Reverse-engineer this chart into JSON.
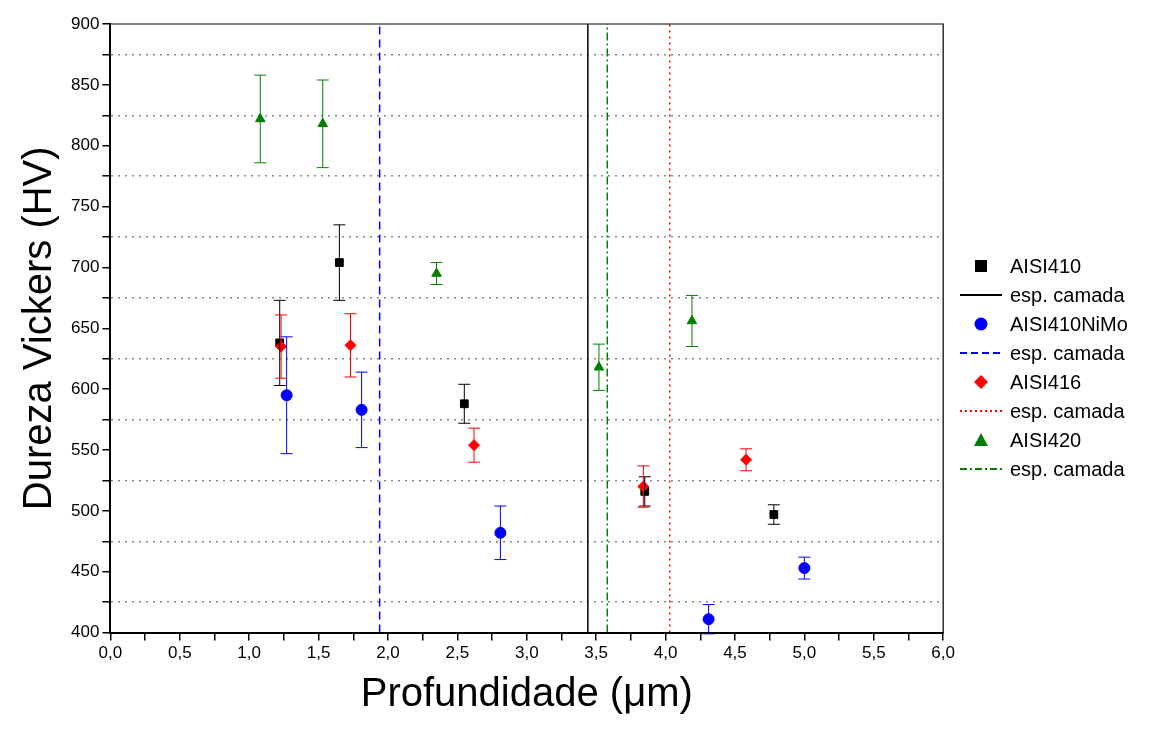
{
  "chart_data": {
    "type": "scatter",
    "xlabel": "Profundidade (μm)",
    "ylabel": "Dureza Vickers (HV)",
    "xlim": [
      0,
      6
    ],
    "ylim": [
      400,
      900
    ],
    "xticks": [
      {
        "value": 0,
        "label": "0,0"
      },
      {
        "value": 0.25,
        "label": null
      },
      {
        "value": 0.5,
        "label": "0,5"
      },
      {
        "value": 0.75,
        "label": null
      },
      {
        "value": 1,
        "label": "1,0"
      },
      {
        "value": 1.25,
        "label": null
      },
      {
        "value": 1.5,
        "label": "1,5"
      },
      {
        "value": 1.75,
        "label": null
      },
      {
        "value": 2,
        "label": "2,0"
      },
      {
        "value": 2.25,
        "label": null
      },
      {
        "value": 2.5,
        "label": "2,5"
      },
      {
        "value": 2.75,
        "label": null
      },
      {
        "value": 3,
        "label": "3,0"
      },
      {
        "value": 3.25,
        "label": null
      },
      {
        "value": 3.5,
        "label": "3,5"
      },
      {
        "value": 3.75,
        "label": null
      },
      {
        "value": 4,
        "label": "4,0"
      },
      {
        "value": 4.25,
        "label": null
      },
      {
        "value": 4.5,
        "label": "4,5"
      },
      {
        "value": 4.75,
        "label": null
      },
      {
        "value": 5,
        "label": "5,0"
      },
      {
        "value": 5.25,
        "label": null
      },
      {
        "value": 5.5,
        "label": "5,5"
      },
      {
        "value": 5.75,
        "label": null
      },
      {
        "value": 6,
        "label": "6,0"
      }
    ],
    "yticks": [
      400,
      {
        "value": 425,
        "label": null
      },
      450,
      {
        "value": 475,
        "label": null
      },
      500,
      {
        "value": 525,
        "label": null
      },
      550,
      {
        "value": 575,
        "label": null
      },
      600,
      {
        "value": 625,
        "label": null
      },
      650,
      {
        "value": 675,
        "label": null
      },
      700,
      {
        "value": 725,
        "label": null
      },
      750,
      {
        "value": 775,
        "label": null
      },
      800,
      {
        "value": 825,
        "label": null
      },
      850,
      {
        "value": 875,
        "label": null
      },
      900
    ],
    "grid": "y",
    "legend": "right",
    "series": [
      {
        "name": "AISI410",
        "color": "#000000",
        "marker": "square",
        "x": [
          1.22,
          1.65,
          2.55,
          3.85,
          4.78
        ],
        "values": [
          638,
          704,
          588,
          516,
          497
        ],
        "errors": [
          35,
          31,
          16,
          12,
          8
        ]
      },
      {
        "name": "esp. camada",
        "type": "line",
        "color": "#000000",
        "marker": "none",
        "line_style": "solid",
        "x": [
          3.44,
          3.44
        ],
        "values": [
          400,
          900
        ]
      },
      {
        "name": "AISI410NiMo",
        "color": "#0000ff",
        "marker": "circle",
        "x": [
          1.27,
          1.81,
          2.81,
          4.31,
          5.0
        ],
        "values": [
          595,
          583,
          482,
          411,
          453
        ],
        "errors": [
          48,
          31,
          22,
          12,
          9
        ]
      },
      {
        "name": "esp. camada",
        "type": "line",
        "color": "#0000ff",
        "marker": "none",
        "line_style": "dashed",
        "x": [
          1.94,
          1.94
        ],
        "values": [
          400,
          900
        ]
      },
      {
        "name": "AISI416",
        "color": "#ff0000",
        "marker": "diamond",
        "x": [
          1.23,
          1.73,
          2.62,
          3.84,
          4.58
        ],
        "values": [
          635,
          636,
          554,
          520,
          542
        ],
        "errors": [
          26,
          26,
          14,
          17,
          9
        ]
      },
      {
        "name": "esp. camada",
        "type": "line",
        "color": "#ff0000",
        "marker": "none",
        "line_style": "dotted",
        "x": [
          4.03,
          4.03
        ],
        "values": [
          400,
          900
        ]
      },
      {
        "name": "AISI420",
        "color": "#008000",
        "marker": "triangle",
        "x": [
          1.08,
          1.53,
          2.35,
          3.52,
          4.19
        ],
        "values": [
          822,
          818,
          695,
          618,
          656
        ],
        "errors": [
          36,
          36,
          9,
          19,
          21
        ]
      },
      {
        "name": "esp. camada",
        "type": "line",
        "color": "#008000",
        "marker": "none",
        "line_style": "dashdot",
        "x": [
          3.58,
          3.58
        ],
        "values": [
          400,
          900
        ]
      }
    ]
  }
}
